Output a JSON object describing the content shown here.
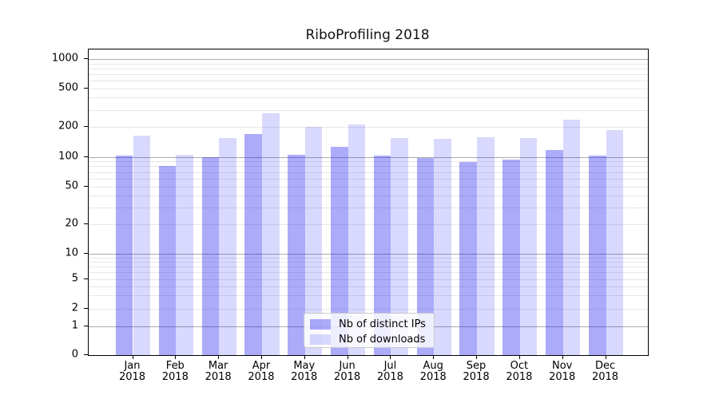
{
  "chart_data": {
    "type": "bar",
    "title": "RiboProfiling 2018",
    "xlabel": "",
    "ylabel": "",
    "yscale": "symlog-like (log above 1, linear 0-1)",
    "grid": true,
    "legend_position": "lower center",
    "categories": [
      "Jan",
      "Feb",
      "Mar",
      "Apr",
      "May",
      "Jun",
      "Jul",
      "Aug",
      "Sep",
      "Oct",
      "Nov",
      "Dec"
    ],
    "category_year": "2018",
    "ytick_labels": [
      "0",
      "1",
      "2",
      "5",
      "10",
      "20",
      "50",
      "100",
      "200",
      "500",
      "1000"
    ],
    "ytick_values": [
      0,
      1,
      2,
      5,
      10,
      20,
      50,
      100,
      200,
      500,
      1000
    ],
    "ylim": [
      0,
      1500
    ],
    "series": [
      {
        "name": "Nb of distinct IPs",
        "color": "rgba(15,15,240,0.35)",
        "values": [
          102,
          81,
          99,
          170,
          104,
          126,
          103,
          97,
          88,
          93,
          118,
          103
        ]
      },
      {
        "name": "Nb of downloads",
        "color": "rgba(15,15,240,0.155)",
        "values": [
          165,
          104,
          156,
          276,
          200,
          211,
          156,
          153,
          158,
          156,
          237,
          186
        ]
      }
    ]
  }
}
